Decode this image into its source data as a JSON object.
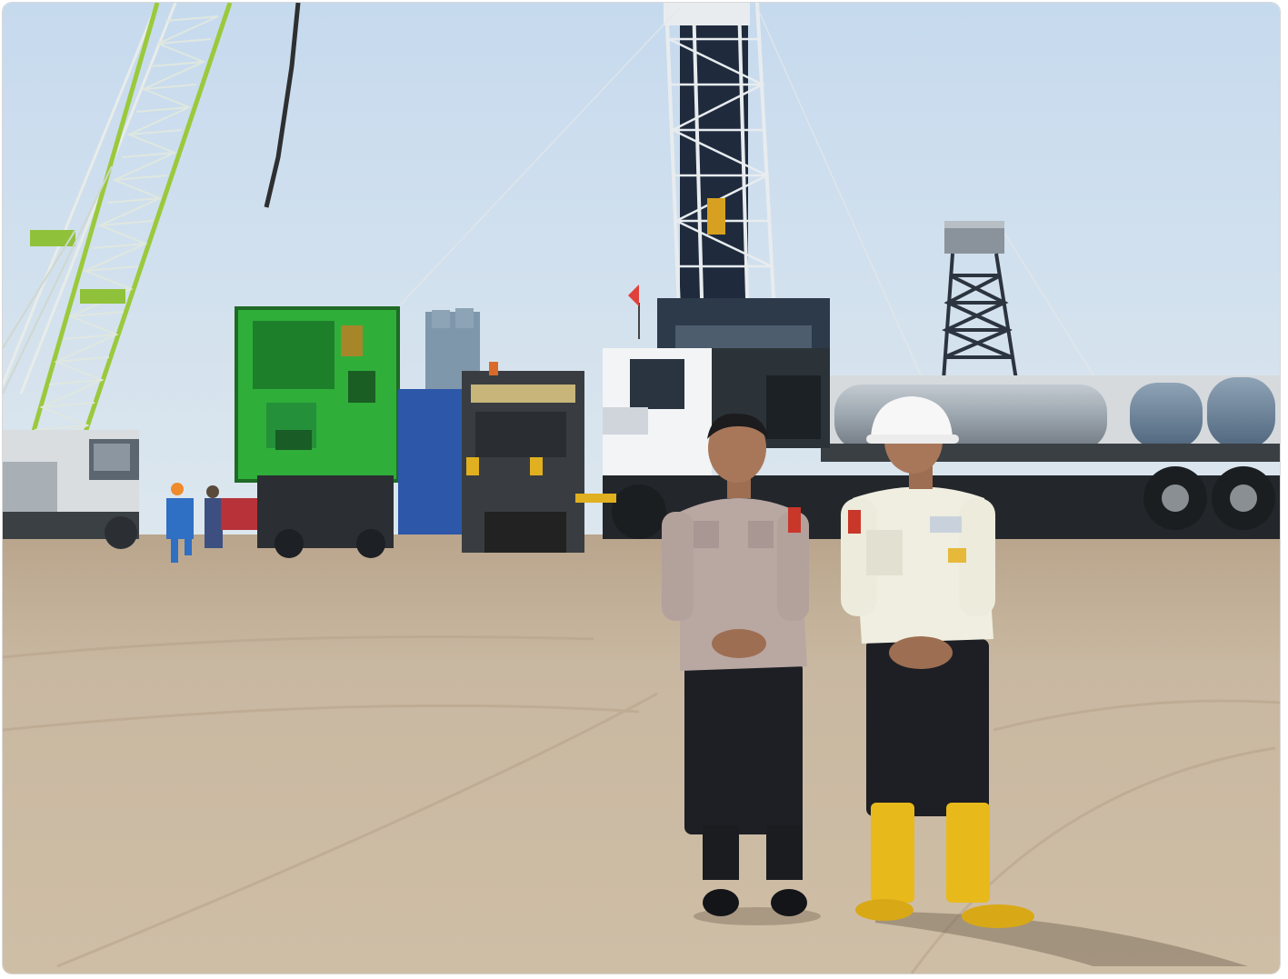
{
  "photo": {
    "scene": "oil-drilling-site",
    "colors": {
      "sky_top": "#c8dbee",
      "sky_bottom": "#dbe6ef",
      "ground": "#c9b79f",
      "crane_green": "#a8d24a",
      "unit_green": "#2fae3a",
      "truck_white": "#f2f4f6",
      "tank_grey": "#9aa4ad",
      "uniform_police": "#b9a7a2",
      "uniform_worker": "#efeee0",
      "boots_yellow": "#e8b91b",
      "trousers": "#1d1f24"
    }
  }
}
